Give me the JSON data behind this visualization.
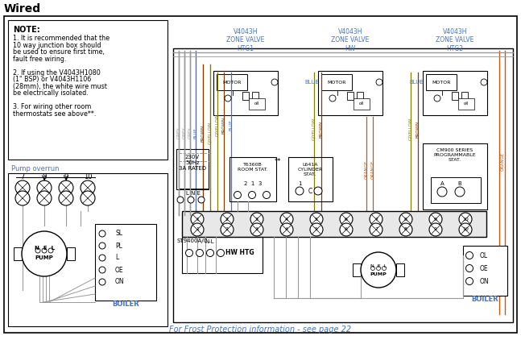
{
  "title": "Wired",
  "bg_color": "#ffffff",
  "note_text": "NOTE:",
  "note_lines": [
    "1. It is recommended that the",
    "10 way junction box should",
    "be used to ensure first time,",
    "fault free wiring.",
    "",
    "2. If using the V4043H1080",
    "(1\" BSP) or V4043H1106",
    "(28mm), the white wire must",
    "be electrically isolated.",
    "",
    "3. For wiring other room",
    "thermostats see above**."
  ],
  "blue_color": "#4472c4",
  "orange_color": "#c55a11",
  "gray_color": "#999999",
  "brown_color": "#7B3F00",
  "gyellow_color": "#808000",
  "footer_text": "For Frost Protection information - see page 22",
  "pump_overrun_label": "Pump overrun",
  "boiler_label": "BOILER",
  "st9400_label": "ST9400A/C",
  "hw_htg_label": "HW HTG",
  "cm900_label": "CM900 SERIES\nPROGRAMMABLE\nSTAT.",
  "t6360b_label": "T6360B\nROOM STAT.",
  "l641a_label": "L641A\nCYLINDER\nSTAT.",
  "power_label": "230V\n50Hz\n3A RATED",
  "lne_label": "L N E",
  "zv_labels": [
    "V4043H\nZONE VALVE\nHTG1",
    "V4043H\nZONE VALVE\nHW",
    "V4043H\nZONE VALVE\nHTG2"
  ]
}
